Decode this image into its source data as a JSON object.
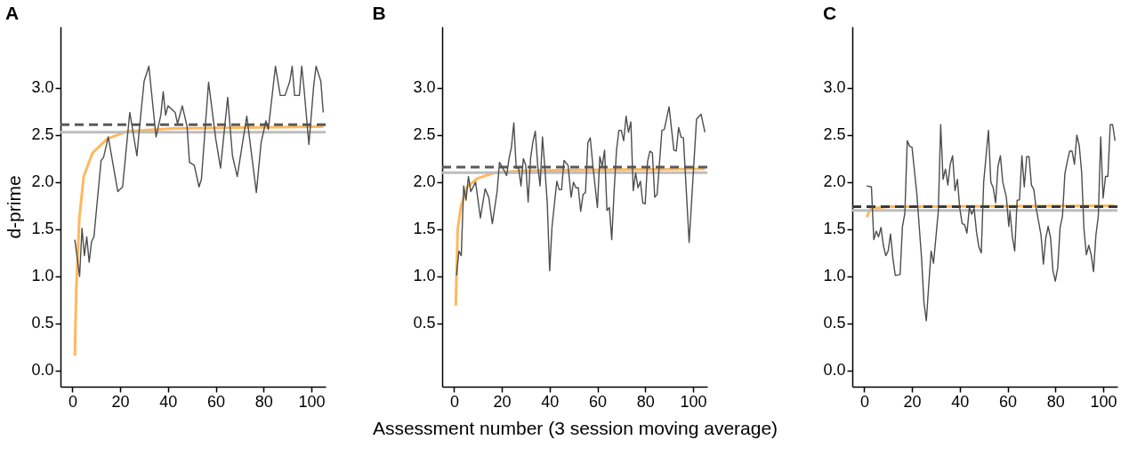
{
  "chart_data": [
    {
      "type": "line",
      "title": "A",
      "ylabel": "d-prime",
      "xlim": [
        -5,
        106
      ],
      "xticks": [
        0,
        20,
        40,
        60,
        80,
        100
      ],
      "ylim": [
        -0.17,
        3.65
      ],
      "yticks": [
        {
          "value": 0,
          "label": "0.0"
        },
        0.5,
        {
          "value": 1,
          "label": "1.0"
        },
        1.5,
        {
          "value": 2,
          "label": "2.0"
        },
        2.5,
        {
          "value": 3,
          "label": "3.0"
        }
      ],
      "grid": false,
      "series": [
        {
          "color": "#4d4d4d",
          "x": [
            1,
            3,
            4,
            5,
            6,
            7,
            8,
            9,
            12,
            13,
            15,
            19,
            21,
            24,
            27,
            28,
            30,
            32,
            35,
            37,
            38,
            39,
            40,
            43,
            44,
            46,
            48,
            49,
            51,
            53,
            54,
            57,
            60,
            62,
            65,
            67,
            69,
            73,
            77,
            79,
            81,
            82,
            85,
            87,
            89,
            91,
            92,
            93,
            95,
            96,
            97,
            99,
            101,
            102,
            104,
            105
          ],
          "values": [
            1.39,
            1.0,
            1.51,
            1.22,
            1.42,
            1.15,
            1.37,
            1.42,
            2.23,
            2.26,
            2.48,
            1.9,
            1.95,
            2.74,
            2.28,
            2.56,
            3.07,
            3.23,
            2.48,
            2.71,
            2.96,
            2.71,
            2.81,
            2.74,
            2.62,
            2.81,
            2.59,
            2.21,
            2.18,
            1.95,
            2.03,
            3.06,
            2.46,
            2.15,
            2.9,
            2.28,
            2.06,
            2.7,
            1.89,
            2.42,
            2.65,
            2.56,
            3.23,
            2.92,
            2.92,
            3.07,
            3.23,
            2.92,
            2.92,
            3.23,
            2.98,
            2.4,
            3.02,
            3.23,
            3.07,
            2.74
          ]
        },
        {
          "type": "line",
          "color": "#ffb85e",
          "x": [
            1,
            1.6,
            2.9,
            4.7,
            8.4,
            14.6,
            23,
            42,
            105
          ],
          "values": [
            0.16,
            0.87,
            1.62,
            2.06,
            2.31,
            2.46,
            2.54,
            2.57,
            2.59
          ]
        }
      ],
      "ref_lines": [
        {
          "axis": "y",
          "value": 2.53,
          "color": "#bdbdbd",
          "line_style": "solid"
        },
        {
          "axis": "y",
          "value": 2.61,
          "color": "#5a5a5a",
          "line_style": "dashed"
        }
      ]
    },
    {
      "type": "line",
      "title": "B",
      "xlabel": "Assessment number (3 session moving average)",
      "xlim": [
        -5,
        106
      ],
      "xticks": [
        0,
        20,
        40,
        60,
        80,
        100
      ],
      "ylim": [
        -0.17,
        3.65
      ],
      "yticks": [
        0.5,
        {
          "value": 1,
          "label": "1.0"
        },
        1.5,
        {
          "value": 2,
          "label": "2.0"
        },
        2.5,
        {
          "value": 3,
          "label": "3.0"
        }
      ],
      "grid": false,
      "series": [
        {
          "color": "#4d4d4d",
          "x": [
            1,
            2,
            3,
            4,
            5,
            6,
            7,
            9,
            11,
            13,
            14.5,
            16,
            18,
            19,
            21,
            22,
            23,
            24,
            25,
            26,
            27,
            28,
            29,
            30,
            31,
            32,
            33,
            34,
            35,
            36,
            37,
            38,
            39,
            40,
            41,
            43,
            44,
            45,
            46,
            47.7,
            49,
            50,
            51,
            52,
            53,
            54,
            55,
            56,
            57,
            58,
            60,
            61,
            62,
            63,
            64,
            65,
            66,
            67,
            68,
            69,
            70,
            71,
            72,
            73,
            74,
            75,
            76,
            77,
            78,
            79,
            80,
            81,
            82,
            83,
            84,
            85,
            87,
            88,
            90,
            92,
            93,
            94,
            95,
            96,
            98.4,
            101.5,
            103.4,
            105
          ],
          "values": [
            1.01,
            1.27,
            1.22,
            1.96,
            1.81,
            2.06,
            1.9,
            2.0,
            1.62,
            1.93,
            1.84,
            1.56,
            1.9,
            2.21,
            2.12,
            2.07,
            2.25,
            2.37,
            2.63,
            2.15,
            2.15,
            1.96,
            2.25,
            2.18,
            1.79,
            2.25,
            2.43,
            2.54,
            2.18,
            1.96,
            2.48,
            2.15,
            1.78,
            1.06,
            1.53,
            2.01,
            1.92,
            1.92,
            2.23,
            2.18,
            1.84,
            2.0,
            1.94,
            1.94,
            1.69,
            1.87,
            1.89,
            2.42,
            2.47,
            2.2,
            1.73,
            2.27,
            2.17,
            2.34,
            1.7,
            1.73,
            1.39,
            1.91,
            2.34,
            2.55,
            2.55,
            2.44,
            2.7,
            2.53,
            2.64,
            1.91,
            2.1,
            1.94,
            2.01,
            1.78,
            1.77,
            2.22,
            2.33,
            2.31,
            1.84,
            1.87,
            2.55,
            2.56,
            2.8,
            2.34,
            2.33,
            2.58,
            2.48,
            2.47,
            1.36,
            2.67,
            2.72,
            2.53
          ]
        },
        {
          "type": "line",
          "color": "#ffb85e",
          "x": [
            0.7,
            1.5,
            2.9,
            5.5,
            9.8,
            17,
            28,
            49,
            98,
            105
          ],
          "values": [
            0.69,
            1.5,
            1.75,
            1.95,
            2.04,
            2.1,
            2.12,
            2.13,
            2.14,
            2.14
          ]
        }
      ],
      "ref_lines": [
        {
          "axis": "y",
          "value": 2.1,
          "color": "#bdbdbd",
          "line_style": "solid"
        },
        {
          "axis": "y",
          "value": 2.16,
          "color": "#5a5a5a",
          "line_style": "dashed"
        }
      ]
    },
    {
      "type": "line",
      "title": "C",
      "xlim": [
        -5,
        106
      ],
      "xticks": [
        0,
        20,
        40,
        60,
        80,
        100
      ],
      "ylim": [
        -0.17,
        3.65
      ],
      "yticks": [
        {
          "value": 0,
          "label": "0.0"
        },
        0.5,
        {
          "value": 1,
          "label": "1.0"
        },
        1.5,
        {
          "value": 2,
          "label": "2.0"
        },
        2.5,
        {
          "value": 3,
          "label": "3.0"
        }
      ],
      "grid": false,
      "series": [
        {
          "color": "#4d4d4d",
          "x": [
            1,
            3,
            4,
            5,
            6,
            7,
            8,
            9,
            10,
            11,
            12,
            13,
            15,
            16,
            17,
            18,
            19,
            20,
            22,
            24,
            25,
            26,
            27,
            28,
            29,
            31,
            32,
            33,
            34,
            35,
            36,
            37,
            38,
            39,
            40,
            41,
            42,
            43,
            44,
            45,
            46,
            47,
            48,
            49,
            50,
            52,
            53,
            54,
            55,
            56,
            57,
            58,
            59.5,
            60.5,
            61,
            62,
            63,
            64,
            65,
            66,
            67,
            68,
            69,
            70,
            71,
            72,
            74,
            75,
            76,
            77,
            78,
            79,
            80,
            81,
            82,
            83,
            84,
            85,
            86,
            87,
            88,
            89,
            90,
            91,
            92,
            93,
            94,
            95,
            96,
            97,
            98,
            99,
            100,
            101,
            102,
            103,
            104,
            105
          ],
          "values": [
            1.96,
            1.95,
            1.39,
            1.48,
            1.42,
            1.52,
            1.33,
            1.22,
            1.27,
            1.45,
            1.19,
            1.01,
            1.02,
            1.53,
            1.67,
            2.44,
            2.38,
            2.37,
            1.88,
            1.19,
            0.72,
            0.53,
            0.91,
            1.27,
            1.14,
            1.69,
            2.61,
            2.03,
            2.14,
            1.97,
            2.19,
            2.28,
            1.91,
            2.03,
            1.72,
            1.56,
            1.55,
            1.46,
            1.73,
            1.66,
            1.72,
            1.47,
            1.31,
            1.25,
            2.0,
            2.55,
            2.0,
            1.94,
            1.78,
            2.17,
            2.28,
            2.0,
            1.84,
            1.53,
            1.69,
            1.42,
            1.27,
            1.81,
            1.81,
            2.28,
            1.95,
            2.27,
            2.27,
            1.97,
            1.92,
            1.72,
            1.44,
            1.13,
            1.41,
            1.53,
            1.41,
            1.06,
            0.95,
            1.09,
            1.52,
            1.64,
            2.09,
            2.22,
            2.33,
            2.33,
            2.19,
            2.5,
            2.39,
            2.11,
            1.5,
            1.23,
            1.33,
            1.23,
            1.05,
            1.44,
            1.64,
            2.48,
            1.83,
            2.06,
            2.06,
            2.61,
            2.61,
            2.44
          ]
        },
        {
          "type": "line",
          "color": "#ffb85e",
          "x": [
            1,
            2.7,
            10,
            105
          ],
          "values": [
            1.63,
            1.72,
            1.74,
            1.75
          ]
        }
      ],
      "ref_lines": [
        {
          "axis": "y",
          "value": 1.7,
          "color": "#bdbdbd",
          "line_style": "solid"
        },
        {
          "axis": "y",
          "value": 1.74,
          "color": "#3a3a3a",
          "line_style": "dashed"
        }
      ]
    }
  ]
}
